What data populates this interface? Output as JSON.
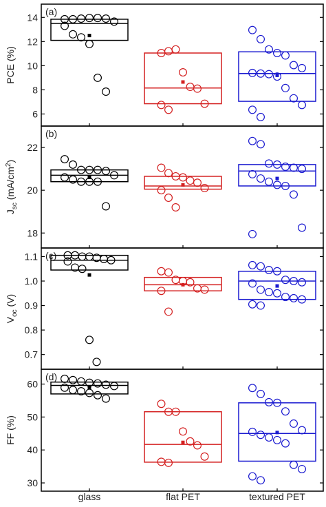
{
  "chart_data": {
    "type": "box",
    "categories": [
      "glass",
      "flat PET",
      "textured PET"
    ],
    "category_colors": [
      "#000000",
      "#d42020",
      "#1a1ad0"
    ],
    "panels": [
      {
        "label": "(a)",
        "ylabel_main": "PCE (%)",
        "ylabel_sub": "",
        "ylabel_tail": "",
        "ylabel_sup": "",
        "ylabel_end": "",
        "ylim": [
          5,
          15.1
        ],
        "yticks": [
          6,
          8,
          10,
          12,
          14
        ],
        "tick_labels": [
          "6",
          "8",
          "10",
          "12",
          "14"
        ],
        "boxes": [
          {
            "q1": 12.1,
            "median": 13.5,
            "q3": 13.85,
            "mean": 12.5
          },
          {
            "q1": 6.85,
            "median": 8.15,
            "q3": 11.05,
            "mean": 8.65
          },
          {
            "q1": 7.05,
            "median": 9.35,
            "q3": 11.15,
            "mean": 9.2
          }
        ],
        "points": [
          [
            13.85,
            13.85,
            13.9,
            13.95,
            13.95,
            13.9,
            13.65,
            13.3,
            12.6,
            12.35,
            11.8,
            9.0,
            7.85
          ],
          [
            11.05,
            11.2,
            11.35,
            9.45,
            8.25,
            8.1,
            6.85,
            6.75,
            6.35
          ],
          [
            12.95,
            12.2,
            11.35,
            11.05,
            10.85,
            10.05,
            9.8,
            9.4,
            9.35,
            9.3,
            9.1,
            8.15,
            7.3,
            6.75,
            6.35,
            5.75
          ]
        ]
      },
      {
        "label": "(b)",
        "ylabel_main": "J",
        "ylabel_sub": "sc",
        "ylabel_tail": " (mA/cm",
        "ylabel_sup": "2",
        "ylabel_end": ")",
        "ylim": [
          17.3,
          23.0
        ],
        "yticks": [
          18,
          20,
          22
        ],
        "tick_labels": [
          "18",
          "20",
          "22"
        ],
        "boxes": [
          {
            "q1": 20.4,
            "median": 20.7,
            "q3": 20.95,
            "mean": 20.6
          },
          {
            "q1": 20.05,
            "median": 20.2,
            "q3": 20.65,
            "mean": 20.25
          },
          {
            "q1": 20.2,
            "median": 20.9,
            "q3": 21.2,
            "mean": 20.55
          }
        ],
        "points": [
          [
            21.45,
            21.2,
            20.95,
            20.95,
            20.95,
            20.9,
            20.7,
            20.6,
            20.5,
            20.4,
            20.4,
            20.4,
            19.25
          ],
          [
            21.05,
            20.8,
            20.65,
            20.6,
            20.45,
            20.35,
            20.1,
            20.0,
            19.65,
            19.2
          ],
          [
            22.3,
            22.15,
            21.25,
            21.2,
            21.1,
            21.05,
            21.0,
            20.75,
            20.55,
            20.4,
            20.25,
            20.2,
            19.8,
            18.25,
            17.95
          ]
        ]
      },
      {
        "label": "(c)",
        "ylabel_main": "V",
        "ylabel_sub": "oc",
        "ylabel_tail": " (V)",
        "ylabel_sup": "",
        "ylabel_end": "",
        "ylim": [
          0.64,
          1.135
        ],
        "yticks": [
          0.7,
          0.8,
          0.9,
          1.0,
          1.1
        ],
        "tick_labels": [
          "0.7",
          "0.8",
          "0.9",
          "1.0",
          "1.1"
        ],
        "boxes": [
          {
            "q1": 1.045,
            "median": 1.085,
            "q3": 1.105,
            "mean": 1.025
          },
          {
            "q1": 0.96,
            "median": 0.985,
            "q3": 1.015,
            "mean": 0.985
          },
          {
            "q1": 0.925,
            "median": 1.0,
            "q3": 1.04,
            "mean": 0.98
          }
        ],
        "points": [
          [
            1.105,
            1.105,
            1.1,
            1.1,
            1.095,
            1.09,
            1.085,
            1.08,
            1.055,
            1.05,
            0.76,
            0.67
          ],
          [
            1.04,
            1.035,
            1.005,
            1.0,
            0.995,
            0.97,
            0.965,
            0.96,
            0.875
          ],
          [
            1.065,
            1.06,
            1.045,
            1.04,
            1.005,
            1.0,
            0.995,
            0.99,
            0.965,
            0.955,
            0.95,
            0.935,
            0.93,
            0.925,
            0.905,
            0.9
          ]
        ]
      },
      {
        "label": "(d)",
        "ylabel_main": "FF (%)",
        "ylabel_sub": "",
        "ylabel_tail": "",
        "ylabel_sup": "",
        "ylabel_end": "",
        "ylim": [
          27.5,
          64.5
        ],
        "yticks": [
          30,
          40,
          50,
          60
        ],
        "tick_labels": [
          "30",
          "40",
          "50",
          "60"
        ],
        "boxes": [
          {
            "q1": 57.0,
            "median": 59.6,
            "q3": 60.6,
            "mean": 59.0
          },
          {
            "q1": 36.3,
            "median": 41.7,
            "q3": 51.6,
            "mean": 42.3
          },
          {
            "q1": 36.6,
            "median": 45.0,
            "q3": 54.3,
            "mean": 45.3
          }
        ],
        "points": [
          [
            61.6,
            61.2,
            60.8,
            60.4,
            60.2,
            59.8,
            59.4,
            58.9,
            58.2,
            57.8,
            57.3,
            56.6,
            55.6
          ],
          [
            54.0,
            51.6,
            51.6,
            45.6,
            42.6,
            41.4,
            38.0,
            36.4,
            36.1
          ],
          [
            58.8,
            57.0,
            54.5,
            54.3,
            51.7,
            48.0,
            46.0,
            45.5,
            44.6,
            43.8,
            43.0,
            42.0,
            35.5,
            34.2,
            32.0,
            30.8
          ]
        ]
      }
    ]
  }
}
